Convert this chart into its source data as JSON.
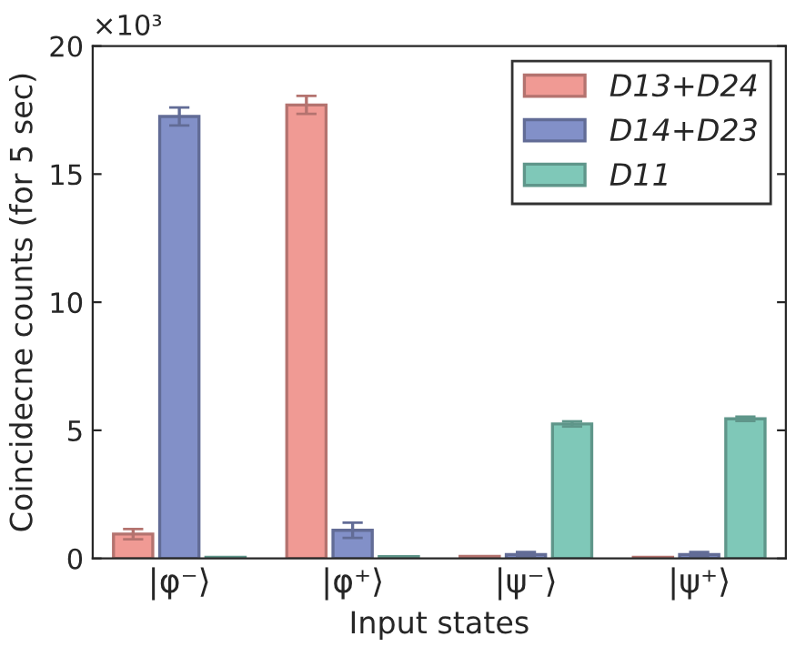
{
  "chart_data": {
    "type": "bar",
    "categories": [
      "|φ⁻⟩",
      "|φ⁺⟩",
      "|ψ⁻⟩",
      "|ψ⁺⟩"
    ],
    "series": [
      {
        "name": "D13+D24",
        "color": "#f09a94",
        "values": [
          0.95,
          17.7,
          0.08,
          0.05
        ],
        "errors": [
          0.2,
          0.35,
          null,
          null
        ]
      },
      {
        "name": "D14+D23",
        "color": "#8290c8",
        "values": [
          17.25,
          1.1,
          0.15,
          0.15
        ],
        "errors": [
          0.35,
          0.3,
          0.1,
          0.1
        ]
      },
      {
        "name": "D11",
        "color": "#7fc8b8",
        "values": [
          0.05,
          0.07,
          5.25,
          5.45
        ],
        "errors": [
          null,
          null,
          0.1,
          0.08
        ]
      }
    ],
    "xlabel": "Input states",
    "ylabel": "Coincidecne counts (for 5 sec)",
    "annotations": [
      "×10³"
    ],
    "ylim": [
      0,
      20
    ],
    "yticks": [
      0,
      5,
      10,
      15,
      20
    ],
    "grid": false,
    "legend": "top right"
  }
}
